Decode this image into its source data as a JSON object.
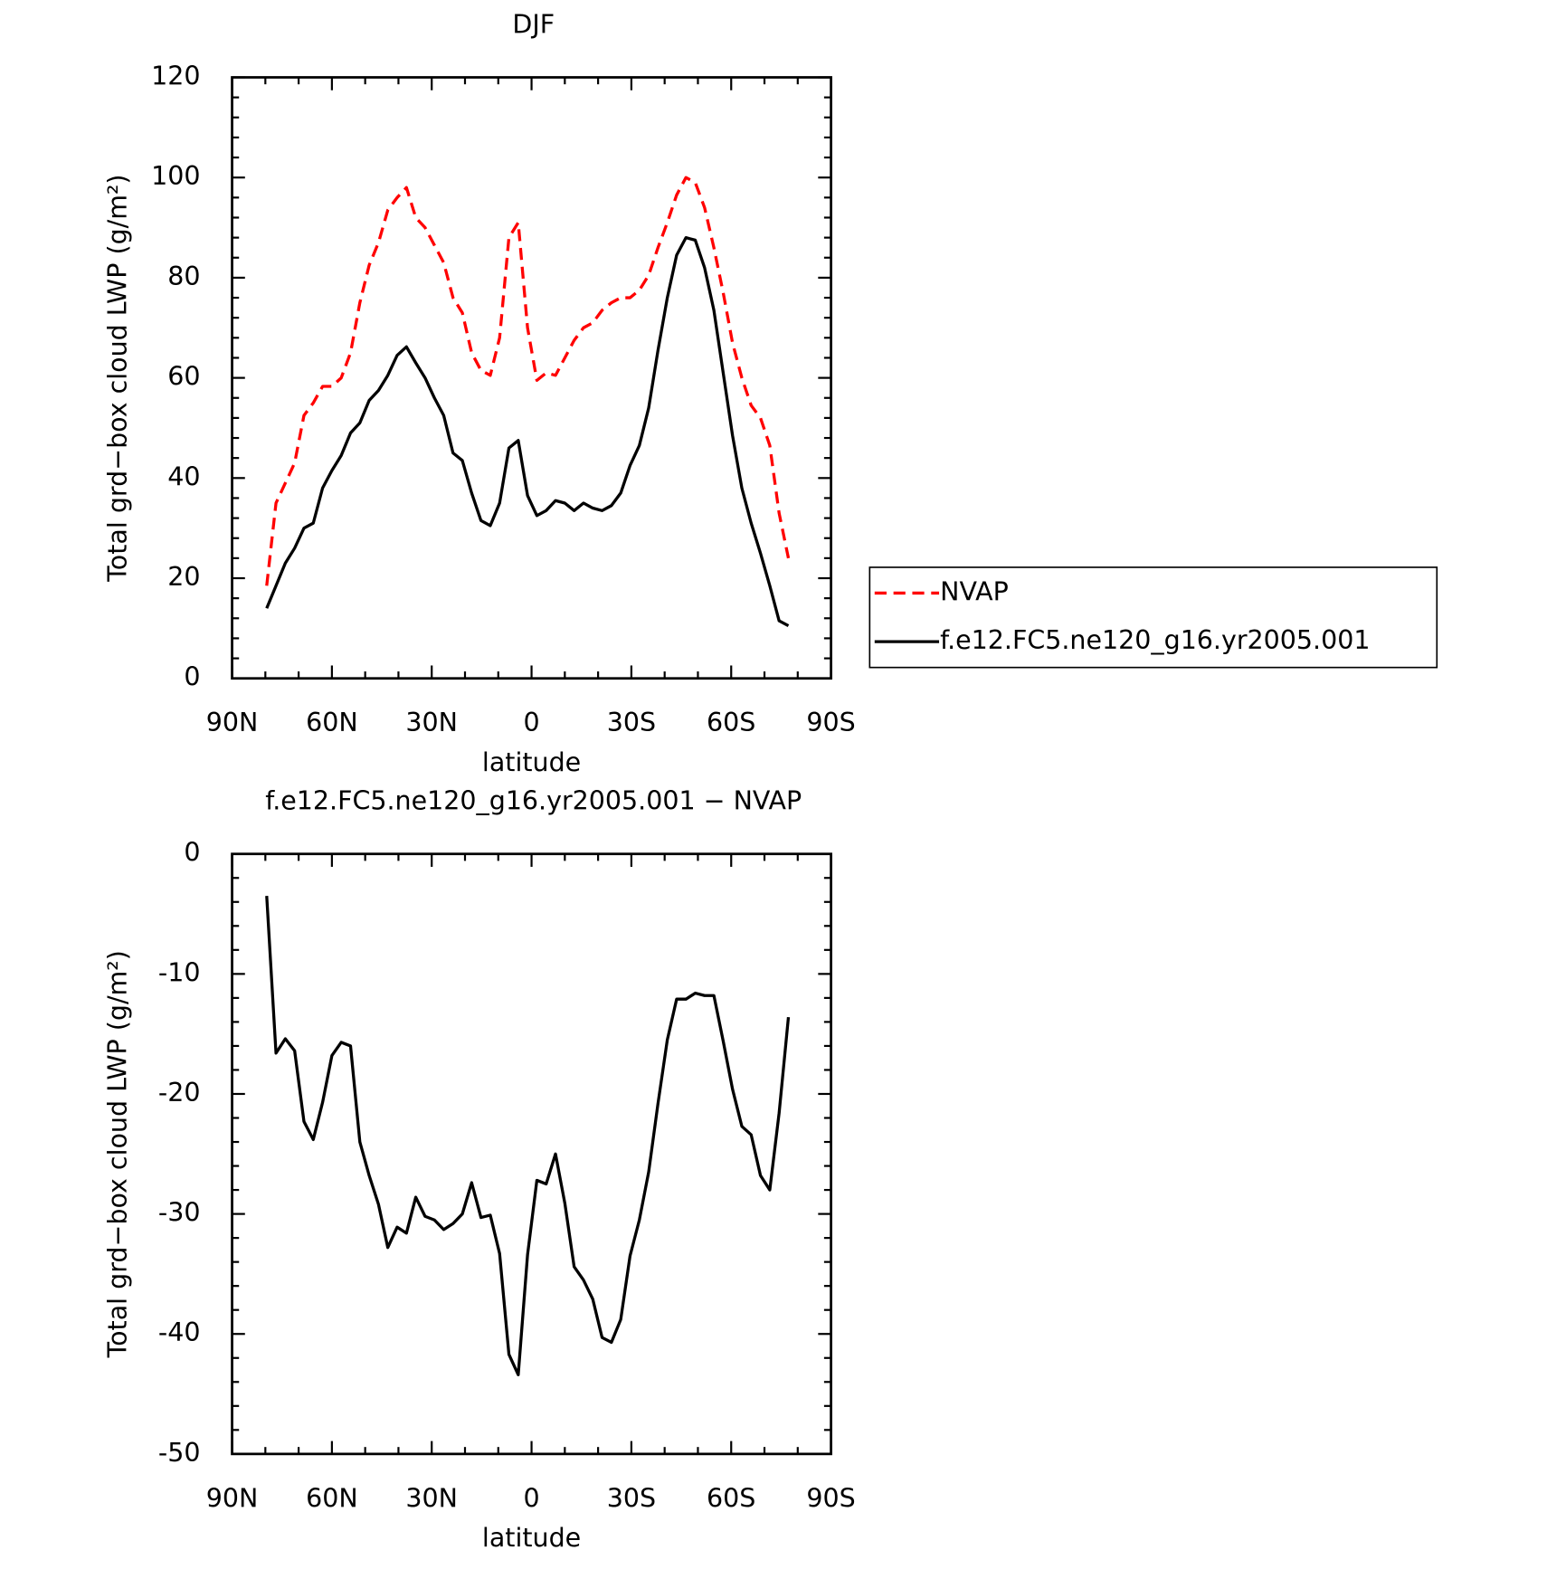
{
  "chart_data": [
    {
      "type": "line",
      "title": "DJF",
      "x_label": "latitude",
      "y_label": "Total grd−box cloud LWP (g/m²)",
      "x": [
        79.6,
        76.8,
        74.0,
        71.2,
        68.4,
        65.6,
        62.8,
        60.0,
        57.2,
        54.4,
        51.6,
        48.8,
        46.0,
        43.2,
        40.4,
        37.6,
        34.8,
        32.0,
        29.2,
        26.4,
        23.6,
        20.8,
        18.0,
        15.2,
        12.4,
        9.6,
        6.8,
        4.0,
        1.2,
        -1.6,
        -4.4,
        -7.2,
        -10.0,
        -12.8,
        -15.6,
        -18.4,
        -21.2,
        -24.0,
        -26.8,
        -29.6,
        -32.4,
        -35.2,
        -38.0,
        -40.8,
        -43.6,
        -46.4,
        -49.2,
        -52.0,
        -54.8,
        -57.6,
        -60.4,
        -63.2,
        -66.0,
        -68.8,
        -71.6,
        -74.4,
        -77.2
      ],
      "series": [
        {
          "name": "NVAP",
          "color": "#ff0000",
          "dashed": true,
          "values": [
            18.5,
            35,
            39,
            43,
            52.5,
            55,
            58.3,
            58.3,
            60,
            65,
            75,
            82.5,
            87,
            93.5,
            96,
            98,
            92,
            90,
            86.5,
            83,
            76,
            73,
            65,
            61.5,
            60.5,
            68,
            88,
            91,
            70,
            59.5,
            61,
            60.5,
            64,
            67.5,
            70,
            71,
            73.5,
            75,
            76,
            76,
            77.5,
            80.5,
            86,
            91,
            96.5,
            100,
            99,
            94,
            86,
            77,
            67,
            60,
            54.5,
            52,
            46.5,
            33,
            24
          ]
        },
        {
          "name": "f.e12.FC5.ne120_g16.yr2005.001",
          "color": "#000000",
          "dashed": false,
          "values": [
            14,
            18.5,
            23,
            26,
            30,
            31,
            38,
            41.5,
            44.5,
            49,
            51,
            55.5,
            57.5,
            60.5,
            64.5,
            66.2,
            63,
            60,
            56,
            52.5,
            45,
            43.5,
            37,
            31.5,
            30.5,
            35,
            46,
            47.5,
            36.5,
            32.5,
            33.5,
            35.5,
            35,
            33.5,
            35,
            34,
            33.5,
            34.5,
            37,
            42.5,
            46.5,
            54,
            65.5,
            76,
            84.5,
            88,
            87.5,
            82,
            73.5,
            61,
            48.5,
            38,
            31,
            25,
            18.5,
            11.5,
            10.5
          ]
        }
      ],
      "xlim": [
        90,
        -90
      ],
      "xticks": [
        {
          "value": 90,
          "label": "90N"
        },
        {
          "value": 60,
          "label": "60N"
        },
        {
          "value": 30,
          "label": "30N"
        },
        0,
        {
          "value": -30,
          "label": "30S"
        },
        {
          "value": -60,
          "label": "60S"
        },
        {
          "value": -90,
          "label": "90S"
        }
      ],
      "ylim": [
        0,
        120
      ],
      "yticks": [
        0,
        20,
        40,
        60,
        80,
        100,
        120
      ],
      "legend": "right"
    },
    {
      "type": "line",
      "title": "f.e12.FC5.ne120_g16.yr2005.001 − NVAP",
      "x_label": "latitude",
      "y_label": "Total grd−box cloud LWP (g/m²)",
      "x": [
        79.6,
        76.8,
        74.0,
        71.2,
        68.4,
        65.6,
        62.8,
        60.0,
        57.2,
        54.4,
        51.6,
        48.8,
        46.0,
        43.2,
        40.4,
        37.6,
        34.8,
        32.0,
        29.2,
        26.4,
        23.6,
        20.8,
        18.0,
        15.2,
        12.4,
        9.6,
        6.8,
        4.0,
        1.2,
        -1.6,
        -4.4,
        -7.2,
        -10.0,
        -12.8,
        -15.6,
        -18.4,
        -21.2,
        -24.0,
        -26.8,
        -29.6,
        -32.4,
        -35.2,
        -38.0,
        -40.8,
        -43.6,
        -46.4,
        -49.2,
        -52.0,
        -54.8,
        -57.6,
        -60.4,
        -63.2,
        -66.0,
        -68.8,
        -71.6,
        -74.4,
        -77.2
      ],
      "series": [
        {
          "color": "#000000",
          "dashed": false,
          "values": [
            -3.5,
            -16.6,
            -15.4,
            -16.4,
            -22.3,
            -23.8,
            -20.7,
            -16.8,
            -15.7,
            -16.0,
            -24,
            -26.8,
            -29.2,
            -32.8,
            -31.1,
            -31.6,
            -28.6,
            -30.2,
            -30.5,
            -31.3,
            -30.8,
            -30,
            -27.4,
            -30.3,
            -30.1,
            -33.3,
            -41.7,
            -43.4,
            -33.4,
            -27.2,
            -27.5,
            -25,
            -29.1,
            -34.4,
            -35.5,
            -37.1,
            -40.3,
            -40.7,
            -38.8,
            -33.5,
            -30.5,
            -26.5,
            -20.8,
            -15.5,
            -12.1,
            -12.1,
            -11.6,
            -11.8,
            -11.8,
            -15.6,
            -19.6,
            -22.7,
            -23.4,
            -26.8,
            -28,
            -21.6,
            -13.6
          ]
        }
      ],
      "xlim": [
        90,
        -90
      ],
      "xticks": [
        {
          "value": 90,
          "label": "90N"
        },
        {
          "value": 60,
          "label": "60N"
        },
        {
          "value": 30,
          "label": "30N"
        },
        0,
        {
          "value": -30,
          "label": "30S"
        },
        {
          "value": -60,
          "label": "60S"
        },
        {
          "value": -90,
          "label": "90S"
        }
      ],
      "ylim": [
        -50,
        0
      ],
      "yticks": [
        -50,
        -40,
        -30,
        -20,
        -10,
        0
      ]
    }
  ]
}
